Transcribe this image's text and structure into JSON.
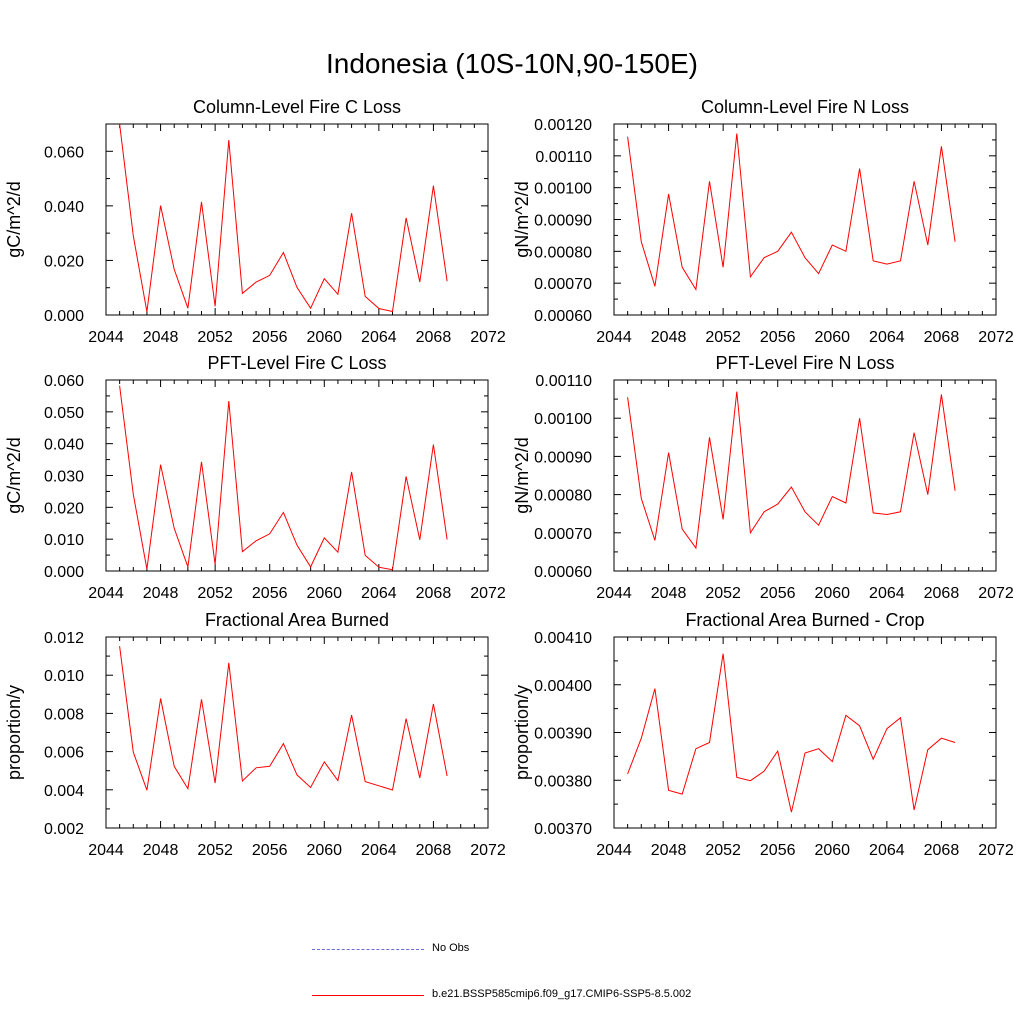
{
  "title": "Indonesia (10S-10N,90-150E)",
  "colors": {
    "series": "#ff0000",
    "obs": "#6a6ad8",
    "axis": "#000000"
  },
  "legend": [
    {
      "label": "No Obs",
      "style": "dashed",
      "color": "#6a6ad8"
    },
    {
      "label": "b.e21.BSSP585cmip6.f09_g17.CMIP6-SSP5-8.5.002",
      "style": "solid",
      "color": "#ff0000"
    }
  ],
  "chart_data": [
    {
      "type": "line",
      "title": "Column-Level Fire C Loss",
      "ylabel": "gC/m^2/d",
      "xlim": [
        2044,
        2072
      ],
      "ylim": [
        0,
        0.07
      ],
      "xticks": [
        "2044",
        "2048",
        "2052",
        "2056",
        "2060",
        "2064",
        "2068",
        "2072"
      ],
      "yticks": [
        "0.000",
        "0.020",
        "0.040",
        "0.060"
      ],
      "ytick_values": [
        0,
        0.02,
        0.04,
        0.06
      ],
      "x": [
        2045,
        2046,
        2047,
        2048,
        2049,
        2050,
        2051,
        2052,
        2053,
        2054,
        2055,
        2056,
        2057,
        2058,
        2059,
        2060,
        2061,
        2062,
        2063,
        2064,
        2065,
        2066,
        2067,
        2068,
        2069
      ],
      "series": [
        {
          "values": [
            0.0705,
            0.029,
            0.0012,
            0.0401,
            0.0167,
            0.0025,
            0.0414,
            0.0032,
            0.0641,
            0.0079,
            0.0121,
            0.0145,
            0.0229,
            0.0101,
            0.0025,
            0.0133,
            0.0076,
            0.0373,
            0.0068,
            0.0024,
            0.0013,
            0.0356,
            0.0121,
            0.0474,
            0.0124
          ]
        }
      ]
    },
    {
      "type": "line",
      "title": "Column-Level Fire N Loss",
      "ylabel": "gN/m^2/d",
      "xlim": [
        2044,
        2072
      ],
      "ylim": [
        0.0006,
        0.0012
      ],
      "xticks": [
        "2044",
        "2048",
        "2052",
        "2056",
        "2060",
        "2064",
        "2068",
        "2072"
      ],
      "yticks": [
        "0.00060",
        "0.00070",
        "0.00080",
        "0.00090",
        "0.00100",
        "0.00110",
        "0.00120"
      ],
      "ytick_values": [
        0.0006,
        0.0007,
        0.0008,
        0.0009,
        0.001,
        0.0011,
        0.0012
      ],
      "x": [
        2045,
        2046,
        2047,
        2048,
        2049,
        2050,
        2051,
        2052,
        2053,
        2054,
        2055,
        2056,
        2057,
        2058,
        2059,
        2060,
        2061,
        2062,
        2063,
        2064,
        2065,
        2066,
        2067,
        2068,
        2069
      ],
      "series": [
        {
          "values": [
            0.00116,
            0.00083,
            0.00069,
            0.00098,
            0.00075,
            0.00068,
            0.00102,
            0.00075,
            0.00117,
            0.00072,
            0.00078,
            0.0008,
            0.00086,
            0.00078,
            0.00073,
            0.00082,
            0.0008,
            0.00106,
            0.00077,
            0.00076,
            0.00077,
            0.00102,
            0.00082,
            0.00113,
            0.00083
          ]
        }
      ]
    },
    {
      "type": "line",
      "title": "PFT-Level Fire C Loss",
      "ylabel": "gC/m^2/d",
      "xlim": [
        2044,
        2072
      ],
      "ylim": [
        0,
        0.06
      ],
      "xticks": [
        "2044",
        "2048",
        "2052",
        "2056",
        "2060",
        "2064",
        "2068",
        "2072"
      ],
      "yticks": [
        "0.000",
        "0.010",
        "0.020",
        "0.030",
        "0.040",
        "0.050",
        "0.060"
      ],
      "ytick_values": [
        0,
        0.01,
        0.02,
        0.03,
        0.04,
        0.05,
        0.06
      ],
      "x": [
        2045,
        2046,
        2047,
        2048,
        2049,
        2050,
        2051,
        2052,
        2053,
        2054,
        2055,
        2056,
        2057,
        2058,
        2059,
        2060,
        2061,
        2062,
        2063,
        2064,
        2065,
        2066,
        2067,
        2068,
        2069
      ],
      "series": [
        {
          "values": [
            0.0582,
            0.0241,
            0.0006,
            0.0334,
            0.0134,
            0.0013,
            0.0343,
            0.0021,
            0.0534,
            0.0061,
            0.0095,
            0.0117,
            0.0184,
            0.0081,
            0.0013,
            0.0104,
            0.0059,
            0.0311,
            0.0049,
            0.0012,
            0.0004,
            0.0297,
            0.0098,
            0.0397,
            0.0099
          ]
        }
      ]
    },
    {
      "type": "line",
      "title": "PFT-Level Fire N Loss",
      "ylabel": "gN/m^2/d",
      "xlim": [
        2044,
        2072
      ],
      "ylim": [
        0.0006,
        0.0011
      ],
      "xticks": [
        "2044",
        "2048",
        "2052",
        "2056",
        "2060",
        "2064",
        "2068",
        "2072"
      ],
      "yticks": [
        "0.00060",
        "0.00070",
        "0.00080",
        "0.00090",
        "0.00100",
        "0.00110"
      ],
      "ytick_values": [
        0.0006,
        0.0007,
        0.0008,
        0.0009,
        0.001,
        0.0011
      ],
      "x": [
        2045,
        2046,
        2047,
        2048,
        2049,
        2050,
        2051,
        2052,
        2053,
        2054,
        2055,
        2056,
        2057,
        2058,
        2059,
        2060,
        2061,
        2062,
        2063,
        2064,
        2065,
        2066,
        2067,
        2068,
        2069
      ],
      "series": [
        {
          "values": [
            0.001055,
            0.00079,
            0.00068,
            0.00091,
            0.00071,
            0.00066,
            0.00095,
            0.000735,
            0.00107,
            0.0007,
            0.000755,
            0.000775,
            0.00082,
            0.000755,
            0.00072,
            0.000795,
            0.000778,
            0.001,
            0.000752,
            0.000748,
            0.000755,
            0.000962,
            0.0008,
            0.001062,
            0.00081
          ]
        }
      ]
    },
    {
      "type": "line",
      "title": "Fractional Area Burned",
      "ylabel": "proportion/y",
      "xlim": [
        2044,
        2072
      ],
      "ylim": [
        0.002,
        0.012
      ],
      "xticks": [
        "2044",
        "2048",
        "2052",
        "2056",
        "2060",
        "2064",
        "2068",
        "2072"
      ],
      "yticks": [
        "0.002",
        "0.004",
        "0.006",
        "0.008",
        "0.010",
        "0.012"
      ],
      "ytick_values": [
        0.002,
        0.004,
        0.006,
        0.008,
        0.01,
        0.012
      ],
      "x": [
        2045,
        2046,
        2047,
        2048,
        2049,
        2050,
        2051,
        2052,
        2053,
        2054,
        2055,
        2056,
        2057,
        2058,
        2059,
        2060,
        2061,
        2062,
        2063,
        2064,
        2065,
        2066,
        2067,
        2068,
        2069
      ],
      "series": [
        {
          "values": [
            0.01152,
            0.00597,
            0.00398,
            0.00878,
            0.00523,
            0.00406,
            0.00874,
            0.00435,
            0.01065,
            0.00446,
            0.00515,
            0.00523,
            0.00642,
            0.00478,
            0.00412,
            0.00546,
            0.00448,
            0.00791,
            0.00443,
            0.00421,
            0.00399,
            0.00773,
            0.00462,
            0.00849,
            0.00472
          ]
        }
      ]
    },
    {
      "type": "line",
      "title": "Fractional Area Burned - Crop",
      "ylabel": "proportion/y",
      "xlim": [
        2044,
        2072
      ],
      "ylim": [
        0.0037,
        0.0041
      ],
      "xticks": [
        "2044",
        "2048",
        "2052",
        "2056",
        "2060",
        "2064",
        "2068",
        "2072"
      ],
      "yticks": [
        "0.00370",
        "0.00380",
        "0.00390",
        "0.00400",
        "0.00410"
      ],
      "ytick_values": [
        0.0037,
        0.0038,
        0.0039,
        0.004,
        0.0041
      ],
      "x": [
        2045,
        2046,
        2047,
        2048,
        2049,
        2050,
        2051,
        2052,
        2053,
        2054,
        2055,
        2056,
        2057,
        2058,
        2059,
        2060,
        2061,
        2062,
        2063,
        2064,
        2065,
        2066,
        2067,
        2068,
        2069
      ],
      "series": [
        {
          "values": [
            0.003813,
            0.003888,
            0.003992,
            0.003779,
            0.003771,
            0.003866,
            0.003879,
            0.004065,
            0.003806,
            0.003799,
            0.003819,
            0.003861,
            0.003733,
            0.003857,
            0.003866,
            0.003839,
            0.003936,
            0.003914,
            0.003844,
            0.003908,
            0.003931,
            0.003738,
            0.003864,
            0.003888,
            0.003879
          ]
        }
      ]
    }
  ]
}
